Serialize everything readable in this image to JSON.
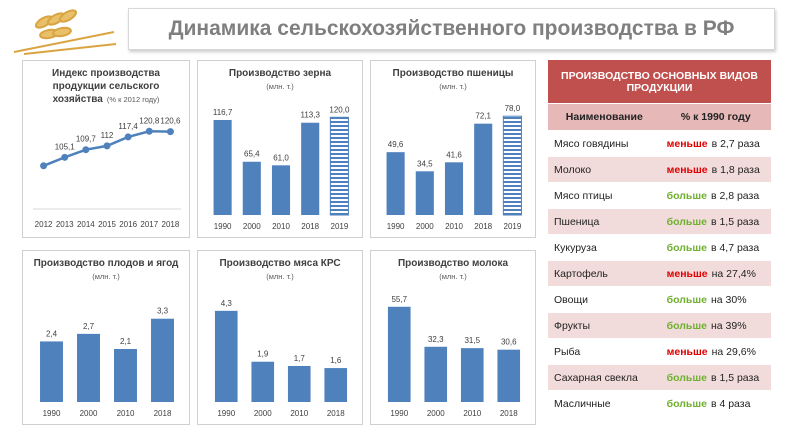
{
  "header": {
    "title": "Динамика сельскохозяйственного производства в РФ"
  },
  "chart_data": [
    {
      "type": "line",
      "title": "Индекс производства продукции сельского хозяйства",
      "subtitle": "(% к 2012 году)",
      "categories": [
        "2012",
        "2013",
        "2014",
        "2015",
        "2016",
        "2017",
        "2018"
      ],
      "values": [
        100,
        105.1,
        109.7,
        112,
        117.4,
        120.8,
        120.6
      ],
      "value_labels": [
        null,
        "105,1",
        "109,7",
        "112",
        "117,4",
        "120,8",
        "120,6"
      ],
      "color": "#4f81bd",
      "ylim": [
        80,
        130
      ]
    },
    {
      "type": "bar",
      "title": "Производство зерна",
      "subtitle": "(млн. т.)",
      "categories": [
        "1990",
        "2000",
        "2010",
        "2018",
        "2019"
      ],
      "values": [
        116.7,
        65.4,
        61.0,
        113.3,
        120.0
      ],
      "value_labels": [
        "116,7",
        "65,4",
        "61,0",
        "113,3",
        "120,0"
      ],
      "hatched": [
        false,
        false,
        false,
        false,
        true
      ],
      "color": "#4f81bd",
      "ylim": [
        0,
        140
      ]
    },
    {
      "type": "bar",
      "title": "Производство пшеницы",
      "subtitle": "(млн. т.)",
      "categories": [
        "1990",
        "2000",
        "2010",
        "2018",
        "2019"
      ],
      "values": [
        49.6,
        34.5,
        41.6,
        72.1,
        78.0
      ],
      "value_labels": [
        "49,6",
        "34,5",
        "41,6",
        "72,1",
        "78,0"
      ],
      "hatched": [
        false,
        false,
        false,
        false,
        true
      ],
      "color": "#4f81bd",
      "ylim": [
        0,
        90
      ]
    },
    {
      "type": "bar",
      "title": "Производство плодов и ягод",
      "subtitle": "(млн. т.)",
      "categories": [
        "1990",
        "2000",
        "2010",
        "2018"
      ],
      "values": [
        2.4,
        2.7,
        2.1,
        3.3
      ],
      "value_labels": [
        "2,4",
        "2,7",
        "2,1",
        "3,3"
      ],
      "color": "#4f81bd",
      "ylim": [
        0,
        4.2
      ]
    },
    {
      "type": "bar",
      "title": "Производство мяса КРС",
      "subtitle": "(млн. т.)",
      "categories": [
        "1990",
        "2000",
        "2010",
        "2018"
      ],
      "values": [
        4.3,
        1.9,
        1.7,
        1.6
      ],
      "value_labels": [
        "4,3",
        "1,9",
        "1,7",
        "1,6"
      ],
      "color": "#4f81bd",
      "ylim": [
        0,
        5
      ]
    },
    {
      "type": "bar",
      "title": "Производство молока",
      "subtitle": "(млн. т.)",
      "categories": [
        "1990",
        "2000",
        "2010",
        "2018"
      ],
      "values": [
        55.7,
        32.3,
        31.5,
        30.6
      ],
      "value_labels": [
        "55,7",
        "32,3",
        "31,5",
        "30,6"
      ],
      "color": "#4f81bd",
      "ylim": [
        0,
        62
      ]
    }
  ],
  "table": {
    "title": "ПРОИЗВОДСТВО ОСНОВНЫХ ВИДОВ ПРОДУКЦИИ",
    "columns": [
      "Наименование",
      "% к 1990 году"
    ],
    "rows": [
      {
        "name": "Мясо говядины",
        "word": "меньше",
        "rest": "в 2,7 раза",
        "color": "#e00000"
      },
      {
        "name": "Молоко",
        "word": "меньше",
        "rest": "в 1,8 раза",
        "color": "#e00000"
      },
      {
        "name": "Мясо птицы",
        "word": "больше",
        "rest": "в 2,8 раза",
        "color": "#70b030"
      },
      {
        "name": "Пшеница",
        "word": "больше",
        "rest": "в 1,5 раза",
        "color": "#70b030"
      },
      {
        "name": "Кукуруза",
        "word": "больше",
        "rest": "в 4,7 раза",
        "color": "#70b030"
      },
      {
        "name": "Картофель",
        "word": "меньше",
        "rest": "на 27,4%",
        "color": "#e00000"
      },
      {
        "name": "Овощи",
        "word": "больше",
        "rest": "на 30%",
        "color": "#70b030"
      },
      {
        "name": "Фрукты",
        "word": "больше",
        "rest": "на 39%",
        "color": "#70b030"
      },
      {
        "name": "Рыба",
        "word": "меньше",
        "rest": "на 29,6%",
        "color": "#e00000"
      },
      {
        "name": "Сахарная свекла",
        "word": "больше",
        "rest": "в 1,5 раза",
        "color": "#70b030"
      },
      {
        "name": "Масличные",
        "word": "больше",
        "rest": "в 4 раза",
        "color": "#70b030"
      }
    ]
  }
}
